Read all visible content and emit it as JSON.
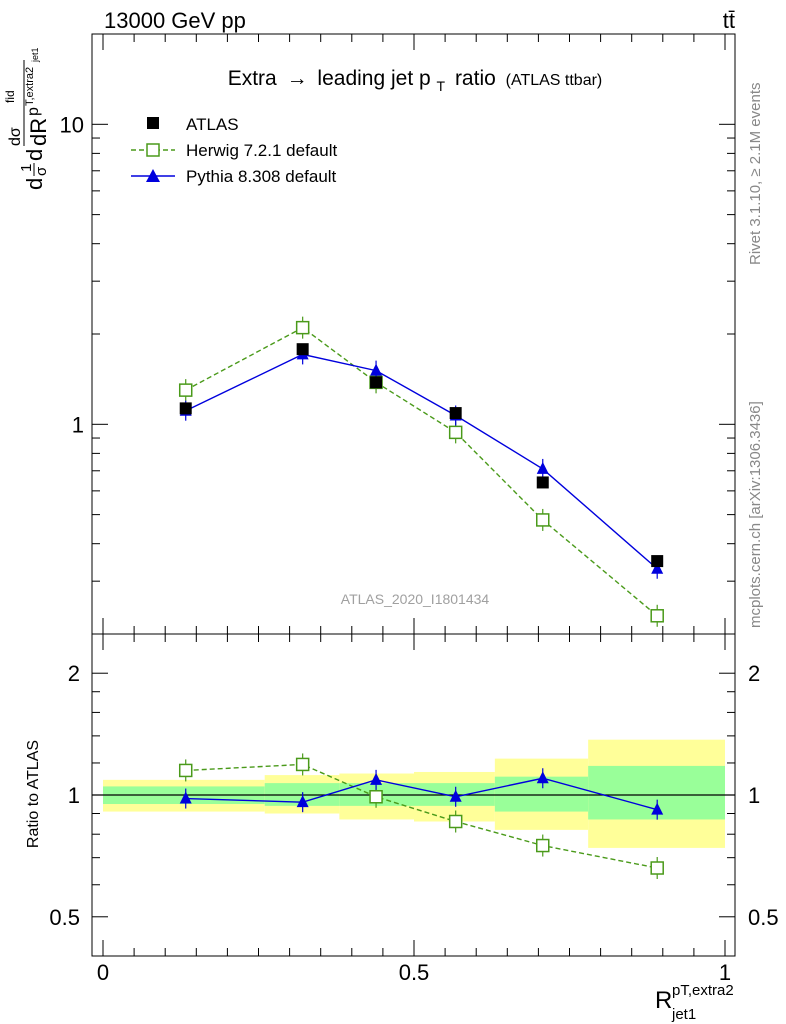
{
  "header": {
    "left": "13000 GeV pp",
    "right": "tt̄"
  },
  "main": {
    "title": "Extra",
    "title_arrow": "→",
    "title_rest": "leading jet p",
    "title_sub": "T",
    "title_tail": "ratio",
    "title_note": "(ATLAS ttbar)",
    "watermark": "ATLAS_2020_I1801434",
    "ylabel_parts": [
      "d",
      "1",
      "σ",
      "d",
      "dσ",
      "fid",
      "p",
      "T,extra2",
      "jet1",
      "dR"
    ]
  },
  "side_labels": {
    "top": "Rivet 3.1.10, ≥ 2.1M events",
    "bottom": "mcplots.cern.ch [arXiv:1306.3436]"
  },
  "ratio_panel": {
    "ylabel": "Ratio to ATLAS"
  },
  "xaxis": {
    "label_main": "R",
    "label_sup": "pT,extra2",
    "label_sub": "jet1"
  },
  "colors": {
    "atlas": "#000000",
    "herwig": "#4a9a1a",
    "pythia": "#0000dd",
    "band_inner": "#99ff99",
    "band_outer": "#ffff99"
  },
  "chart_data": [
    {
      "type": "line",
      "panel": "main",
      "yscale": "log",
      "xlim": [
        0,
        1
      ],
      "ylim": [
        0.2,
        20
      ],
      "yticks": [
        {
          "value": 1,
          "label": "1"
        },
        {
          "value": 10,
          "label": "10"
        }
      ],
      "series": [
        {
          "name": "ATLAS",
          "marker": "filled-square",
          "line": "none",
          "x": [
            0.133,
            0.321,
            0.439,
            0.567,
            0.707,
            0.891
          ],
          "y": [
            1.13,
            1.78,
            1.38,
            1.09,
            0.64,
            0.35
          ]
        },
        {
          "name": "Herwig 7.2.1 default",
          "marker": "open-square",
          "line": "dashed",
          "x": [
            0.133,
            0.321,
            0.439,
            0.567,
            0.707,
            0.891
          ],
          "y": [
            1.3,
            2.1,
            1.38,
            0.94,
            0.48,
            0.23
          ]
        },
        {
          "name": "Pythia 8.308 default",
          "marker": "filled-triangle",
          "line": "solid",
          "x": [
            0.133,
            0.321,
            0.439,
            0.567,
            0.707,
            0.891
          ],
          "y": [
            1.11,
            1.71,
            1.51,
            1.07,
            0.71,
            0.33
          ]
        }
      ],
      "legend": [
        "ATLAS",
        "Herwig 7.2.1 default",
        "Pythia 8.308 default"
      ]
    },
    {
      "type": "line",
      "panel": "ratio",
      "yscale": "log",
      "xlim": [
        0,
        1
      ],
      "ylim": [
        0.4,
        2.5
      ],
      "yticks": [
        {
          "value": 0.5,
          "label": "0.5"
        },
        {
          "value": 1,
          "label": "1"
        },
        {
          "value": 2,
          "label": "2"
        }
      ],
      "xticks": [
        {
          "value": 0,
          "label": "0"
        },
        {
          "value": 0.5,
          "label": "0.5"
        },
        {
          "value": 1,
          "label": "1"
        }
      ],
      "bands": [
        {
          "x0": 0.0,
          "x1": 0.26,
          "inner": [
            0.95,
            1.05
          ],
          "outer": [
            0.91,
            1.09
          ]
        },
        {
          "x0": 0.26,
          "x1": 0.38,
          "inner": [
            0.94,
            1.07
          ],
          "outer": [
            0.9,
            1.12
          ]
        },
        {
          "x0": 0.38,
          "x1": 0.5,
          "inner": [
            0.94,
            1.07
          ],
          "outer": [
            0.87,
            1.13
          ]
        },
        {
          "x0": 0.5,
          "x1": 0.63,
          "inner": [
            0.94,
            1.07
          ],
          "outer": [
            0.86,
            1.14
          ]
        },
        {
          "x0": 0.63,
          "x1": 0.78,
          "inner": [
            0.91,
            1.11
          ],
          "outer": [
            0.82,
            1.23
          ]
        },
        {
          "x0": 0.78,
          "x1": 1.0,
          "inner": [
            0.87,
            1.18
          ],
          "outer": [
            0.74,
            1.37
          ]
        }
      ],
      "series": [
        {
          "name": "Herwig 7.2.1 default",
          "marker": "open-square",
          "line": "dashed",
          "x": [
            0.133,
            0.321,
            0.439,
            0.567,
            0.707,
            0.891
          ],
          "y": [
            1.15,
            1.19,
            0.99,
            0.86,
            0.75,
            0.66
          ]
        },
        {
          "name": "Pythia 8.308 default",
          "marker": "filled-triangle",
          "line": "solid",
          "x": [
            0.133,
            0.321,
            0.439,
            0.567,
            0.707,
            0.891
          ],
          "y": [
            0.98,
            0.96,
            1.09,
            0.99,
            1.1,
            0.92
          ]
        }
      ]
    }
  ]
}
